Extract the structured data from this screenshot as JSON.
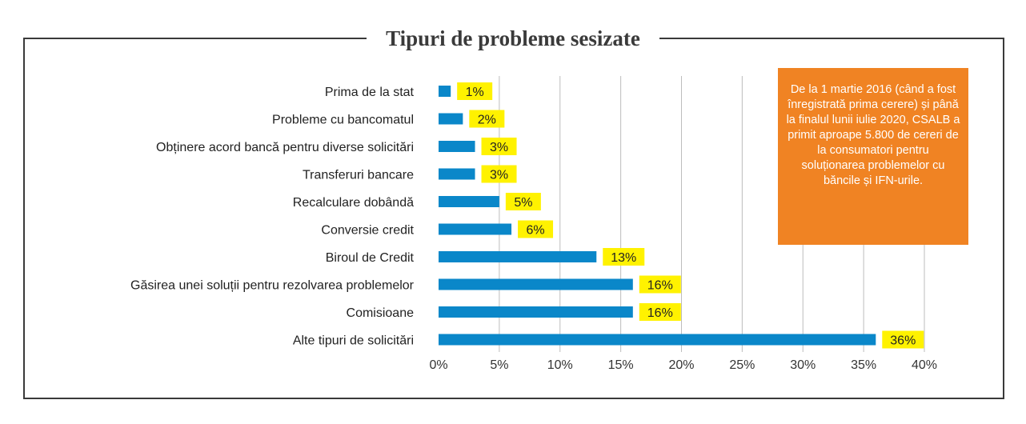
{
  "chart_data": {
    "type": "bar",
    "orientation": "horizontal",
    "title": "Tipuri de probleme sesizate",
    "categories": [
      "Prima de la stat",
      "Probleme cu bancomatul",
      "Obținere acord bancă pentru diverse solicitări",
      "Transferuri bancare",
      "Recalculare dobândă",
      "Conversie credit",
      "Biroul de Credit",
      "Găsirea unei soluții pentru rezolvarea problemelor",
      "Comisioane",
      "Alte tipuri de solicitări"
    ],
    "values": [
      1,
      2,
      3,
      3,
      5,
      6,
      13,
      16,
      16,
      36
    ],
    "data_labels": [
      "1%",
      "2%",
      "3%",
      "3%",
      "5%",
      "6%",
      "13%",
      "16%",
      "16%",
      "36%"
    ],
    "x_ticks": [
      "0%",
      "5%",
      "10%",
      "15%",
      "20%",
      "25%",
      "30%",
      "35%",
      "40%"
    ],
    "xlim": [
      0,
      40
    ],
    "xlabel": "",
    "ylabel": "",
    "grid": true,
    "colors": {
      "bar": "#0a87c9",
      "label_bg": "#fff200",
      "grid": "#bdbdbd"
    }
  },
  "note": {
    "text": "De la 1 martie 2016 (când a fost înregistrată prima cerere) și până la finalul lunii iulie 2020, CSALB a primit aproape 5.800 de cereri de la consumatori pentru soluționarea problemelor cu băncile și IFN-urile.",
    "color": "#f08323"
  }
}
